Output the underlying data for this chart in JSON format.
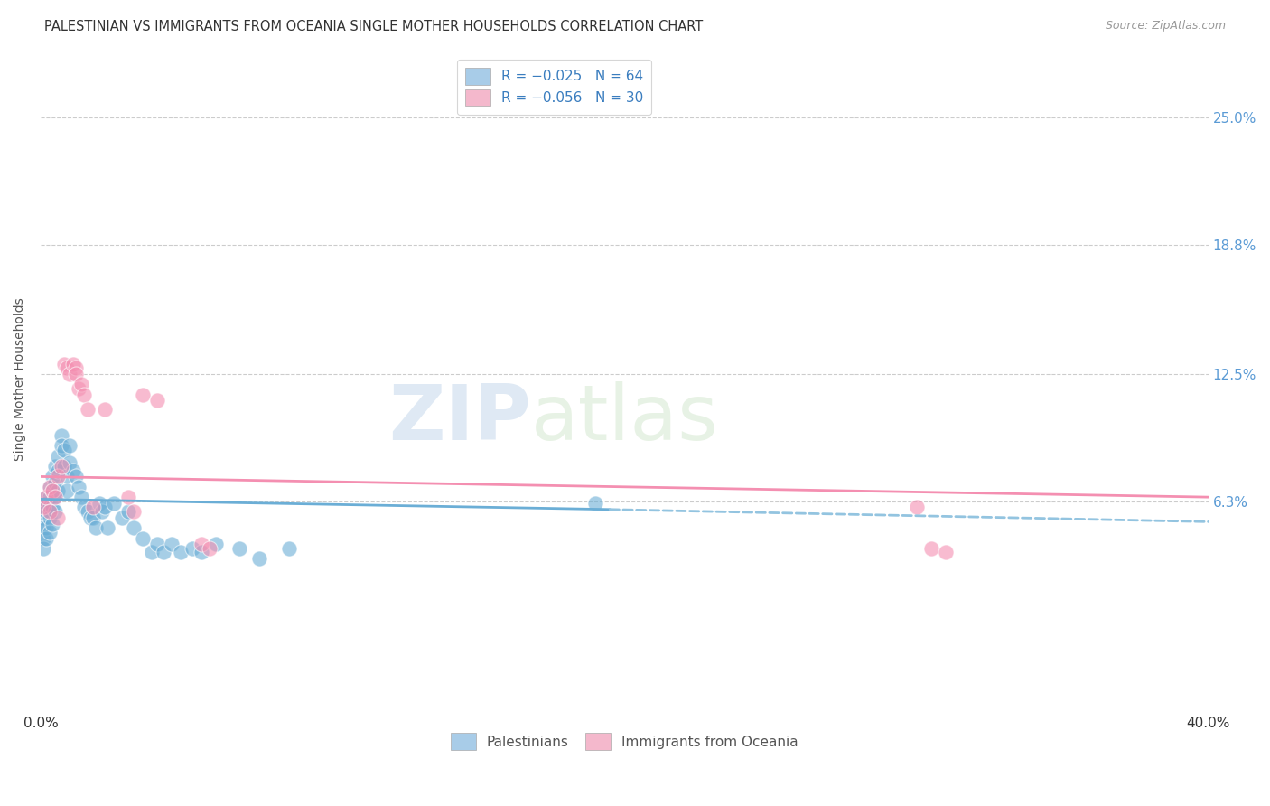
{
  "title": "PALESTINIAN VS IMMIGRANTS FROM OCEANIA SINGLE MOTHER HOUSEHOLDS CORRELATION CHART",
  "source": "Source: ZipAtlas.com",
  "ylabel": "Single Mother Households",
  "ytick_labels": [
    "25.0%",
    "18.8%",
    "12.5%",
    "6.3%"
  ],
  "ytick_values": [
    0.25,
    0.188,
    0.125,
    0.063
  ],
  "xlim": [
    0.0,
    0.4
  ],
  "ylim": [
    -0.04,
    0.285
  ],
  "blue_color": "#6baed6",
  "pink_color": "#f48fb1",
  "blue_dashed_color": "#93c4e0",
  "watermark_zip": "ZIP",
  "watermark_atlas": "atlas",
  "background_color": "#ffffff",
  "palestinians_x": [
    0.001,
    0.001,
    0.001,
    0.001,
    0.001,
    0.002,
    0.002,
    0.002,
    0.002,
    0.002,
    0.003,
    0.003,
    0.003,
    0.003,
    0.003,
    0.004,
    0.004,
    0.004,
    0.004,
    0.005,
    0.005,
    0.005,
    0.005,
    0.006,
    0.006,
    0.006,
    0.007,
    0.007,
    0.008,
    0.008,
    0.009,
    0.009,
    0.01,
    0.01,
    0.011,
    0.012,
    0.013,
    0.014,
    0.015,
    0.016,
    0.017,
    0.018,
    0.019,
    0.02,
    0.021,
    0.022,
    0.023,
    0.025,
    0.028,
    0.03,
    0.032,
    0.035,
    0.038,
    0.04,
    0.042,
    0.045,
    0.048,
    0.052,
    0.055,
    0.06,
    0.068,
    0.075,
    0.085,
    0.19
  ],
  "palestinians_y": [
    0.06,
    0.055,
    0.05,
    0.045,
    0.04,
    0.065,
    0.062,
    0.058,
    0.05,
    0.045,
    0.07,
    0.065,
    0.06,
    0.055,
    0.048,
    0.075,
    0.068,
    0.06,
    0.052,
    0.08,
    0.072,
    0.065,
    0.058,
    0.085,
    0.078,
    0.068,
    0.095,
    0.09,
    0.088,
    0.08,
    0.075,
    0.068,
    0.09,
    0.082,
    0.078,
    0.075,
    0.07,
    0.065,
    0.06,
    0.058,
    0.055,
    0.055,
    0.05,
    0.062,
    0.058,
    0.06,
    0.05,
    0.062,
    0.055,
    0.058,
    0.05,
    0.045,
    0.038,
    0.042,
    0.038,
    0.042,
    0.038,
    0.04,
    0.038,
    0.042,
    0.04,
    0.035,
    0.04,
    0.062
  ],
  "oceania_x": [
    0.001,
    0.002,
    0.003,
    0.003,
    0.004,
    0.005,
    0.006,
    0.006,
    0.007,
    0.008,
    0.009,
    0.01,
    0.011,
    0.012,
    0.012,
    0.013,
    0.014,
    0.015,
    0.016,
    0.018,
    0.022,
    0.03,
    0.032,
    0.035,
    0.04,
    0.055,
    0.058,
    0.3,
    0.305,
    0.31
  ],
  "oceania_y": [
    0.06,
    0.065,
    0.07,
    0.058,
    0.068,
    0.065,
    0.055,
    0.075,
    0.08,
    0.13,
    0.128,
    0.125,
    0.13,
    0.128,
    0.125,
    0.118,
    0.12,
    0.115,
    0.108,
    0.06,
    0.108,
    0.065,
    0.058,
    0.115,
    0.112,
    0.042,
    0.04,
    0.06,
    0.04,
    0.038
  ],
  "blue_line_x0": 0.0,
  "blue_line_x_solid_end": 0.195,
  "blue_line_x_dashed_end": 0.4,
  "blue_line_y0": 0.064,
  "blue_line_y_solid_end": 0.059,
  "blue_line_y_dashed_end": 0.053,
  "pink_line_x0": 0.0,
  "pink_line_x1": 0.4,
  "pink_line_y0": 0.075,
  "pink_line_y1": 0.065
}
